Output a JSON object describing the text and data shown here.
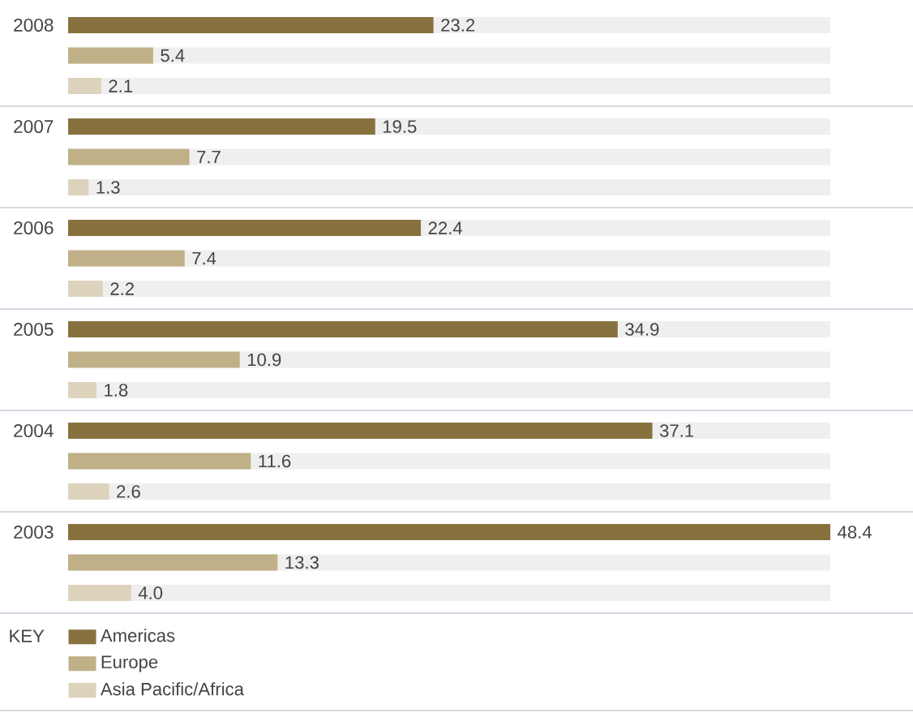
{
  "chart_data": {
    "type": "bar",
    "orientation": "horizontal",
    "legend_title": "KEY",
    "legend": "bottom",
    "tick_labels": "y",
    "categories": [
      "2008",
      "2007",
      "2006",
      "2005",
      "2004",
      "2003"
    ],
    "series": [
      {
        "name": "Americas",
        "color": "#87723f",
        "values": [
          23.2,
          19.5,
          22.4,
          34.9,
          37.1,
          48.4
        ],
        "value_labels": [
          "23.2",
          "19.5",
          "22.4",
          "34.9",
          "37.1",
          "48.4"
        ]
      },
      {
        "name": "Europe",
        "color": "#bfb088",
        "values": [
          5.4,
          7.7,
          7.4,
          10.9,
          11.6,
          13.3
        ],
        "value_labels": [
          "5.4",
          "7.7",
          "7.4",
          "10.9",
          "11.6",
          "13.3"
        ]
      },
      {
        "name": "Asia Pacific/Africa",
        "color": "#ddd3bc",
        "values": [
          2.1,
          1.3,
          2.2,
          1.8,
          2.6,
          4.0
        ],
        "value_labels": [
          "2.1",
          "1.3",
          "2.2",
          "1.8",
          "2.6",
          "4.0"
        ]
      }
    ]
  }
}
